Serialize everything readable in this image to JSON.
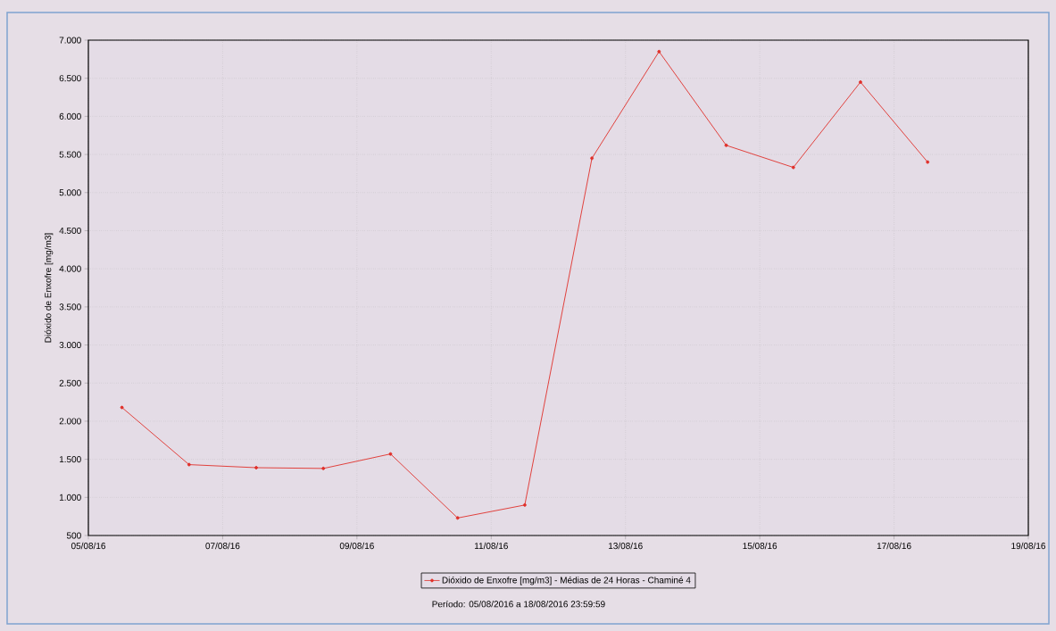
{
  "chart_data": {
    "type": "line",
    "xlabel": null,
    "ylabel": "Dióxido de Enxofre [mg/m3]",
    "x": [
      "2016-08-05T12:00",
      "2016-08-06T12:00",
      "2016-08-07T12:00",
      "2016-08-08T12:00",
      "2016-08-09T12:00",
      "2016-08-10T12:00",
      "2016-08-11T12:00",
      "2016-08-12T12:00",
      "2016-08-13T12:00",
      "2016-08-14T12:00",
      "2016-08-15T12:00",
      "2016-08-16T12:00",
      "2016-08-17T12:00"
    ],
    "series": [
      {
        "name": "Dióxido de Enxofre [mg/m3] - Médias de 24 Horas - Chaminé 4",
        "color": "#e0302a",
        "values": [
          2180,
          1430,
          1390,
          1380,
          1570,
          730,
          900,
          5450,
          6850,
          5620,
          5330,
          6450,
          5400
        ]
      }
    ],
    "xlim": [
      "2016-08-05",
      "2016-08-19"
    ],
    "xticks": [
      {
        "value": "2016-08-05",
        "label": "05/08/16"
      },
      {
        "value": "2016-08-07",
        "label": "07/08/16"
      },
      {
        "value": "2016-08-09",
        "label": "09/08/16"
      },
      {
        "value": "2016-08-11",
        "label": "11/08/16"
      },
      {
        "value": "2016-08-13",
        "label": "13/08/16"
      },
      {
        "value": "2016-08-15",
        "label": "15/08/16"
      },
      {
        "value": "2016-08-17",
        "label": "17/08/16"
      },
      {
        "value": "2016-08-19",
        "label": "19/08/16"
      }
    ],
    "ylim": [
      500,
      7000
    ],
    "yticks": [
      {
        "value": 500,
        "label": "500"
      },
      {
        "value": 1000,
        "label": "1.000"
      },
      {
        "value": 1500,
        "label": "1.500"
      },
      {
        "value": 2000,
        "label": "2.000"
      },
      {
        "value": 2500,
        "label": "2.500"
      },
      {
        "value": 3000,
        "label": "3.000"
      },
      {
        "value": 3500,
        "label": "3.500"
      },
      {
        "value": 4000,
        "label": "4.000"
      },
      {
        "value": 4500,
        "label": "4.500"
      },
      {
        "value": 5000,
        "label": "5.000"
      },
      {
        "value": 5500,
        "label": "5.500"
      },
      {
        "value": 6000,
        "label": "6.000"
      },
      {
        "value": 6500,
        "label": "6.500"
      },
      {
        "value": 7000,
        "label": "7.000"
      }
    ],
    "grid": true,
    "legend": "bottom",
    "marker": "circle",
    "line_style": "solid",
    "annotations": [
      "Período: 05/08/2016 a 18/08/2016 23:59:59"
    ]
  }
}
